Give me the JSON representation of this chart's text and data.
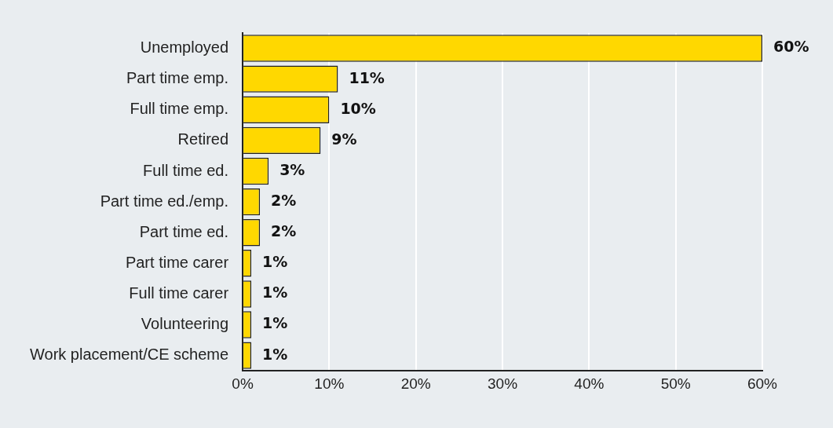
{
  "chart_data": {
    "type": "bar",
    "orientation": "horizontal",
    "categories": [
      "Unemployed",
      "Part time emp.",
      "Full time emp.",
      "Retired",
      "Full time ed.",
      "Part time ed./emp.",
      "Part time ed.",
      "Part time carer",
      "Full time carer",
      "Volunteering",
      "Work placement/CE scheme"
    ],
    "values": [
      60,
      11,
      10,
      9,
      3,
      2,
      2,
      1,
      1,
      1,
      1
    ],
    "value_labels": [
      "60%",
      "11%",
      "10%",
      "9%",
      "3%",
      "2%",
      "2%",
      "1%",
      "1%",
      "1%",
      "1%"
    ],
    "color": "#ffd800",
    "xlim": [
      0,
      60
    ],
    "xticks": [
      {
        "value": 0,
        "label": "0%"
      },
      {
        "value": 10,
        "label": "10%"
      },
      {
        "value": 20,
        "label": "20%"
      },
      {
        "value": 30,
        "label": "30%"
      },
      {
        "value": 40,
        "label": "40%"
      },
      {
        "value": 50,
        "label": "50%"
      },
      {
        "value": 60,
        "label": "60%"
      }
    ],
    "grid": "x"
  }
}
